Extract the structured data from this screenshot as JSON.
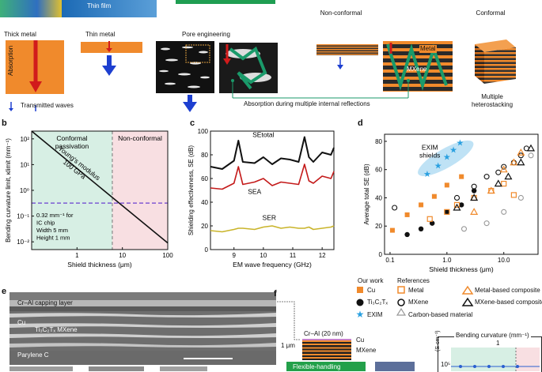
{
  "top": {
    "thin_film_label": "Thin film",
    "non_conformal_label": "Non-conformal",
    "conformal_label": "Conformal"
  },
  "panel_a": {
    "thick_metal": "Thick metal",
    "absorption": "Absorption",
    "thin_metal": "Thin metal",
    "pore_engineering": "Pore engineering",
    "metal": "Metal",
    "mxene": "MXene",
    "transmitted_waves": "Transmitted waves",
    "absorption_multiple": "Absorption during multiple internal reflections",
    "multiple_heterostacking": "Multiple\nheterostacking"
  },
  "panel_b": {
    "letter": "b",
    "ylabel": "Bending curvature limit, κlimit (mm⁻¹)",
    "xlabel": "Shield thickness (μm)",
    "conformal_passivation": "Conformal\npassivation",
    "non_conformal": "Non-conformal",
    "youngs_modulus": "Young's modulus\n100 GPa",
    "note": "0.32 mm⁻¹ for\nIC chip\nWidth 5 mm\nHeight 1 mm",
    "y_ticks": [
      "10²",
      "10¹",
      "10⁰",
      "10⁻¹",
      "10⁻²"
    ],
    "x_ticks": [
      "1",
      "10",
      "100"
    ]
  },
  "panel_c": {
    "letter": "c",
    "ylabel": "Shielding effectiveness, SE (dB)",
    "xlabel": "EM wave frequency (GHz)",
    "se_total": "SEtotal",
    "se_a": "SEA",
    "se_r": "SER",
    "y_ticks": [
      "100",
      "80",
      "60",
      "40",
      "20",
      "0"
    ],
    "x_ticks": [
      "9",
      "10",
      "11",
      "12"
    ]
  },
  "panel_d": {
    "letter": "d",
    "ylabel": "Average total SE (dB)",
    "xlabel": "Shield thickness (μm)",
    "exim_shields": "EXIM\nshields",
    "y_ticks": [
      "80",
      "60",
      "40",
      "20",
      "0"
    ],
    "x_ticks": [
      "0.1",
      "1.0",
      "10.0"
    ]
  },
  "legend": {
    "our_work": "Our work",
    "cu": "Cu",
    "ti3c2tx": "Ti₃C₂Tₓ",
    "exim": "EXIM",
    "references": "References",
    "metal": "Metal",
    "mxene": "MXene",
    "carbon": "Carbon-based material",
    "metal_composite": "Metal-based composite",
    "mxene_composite": "MXene-based composite"
  },
  "panel_e": {
    "letter": "e",
    "capping": "Cr–Al capping layer",
    "cu": "Cu",
    "mxene": "Ti₃C₂Tₓ MXene",
    "parylene": "Parylene C"
  },
  "panel_f": {
    "letter": "f",
    "cr_al": "Cr–Al (20 nm)",
    "cu": "Cu",
    "mxene": "MXene",
    "scale": "1 μm",
    "flex": "Flexible-handling",
    "bending_curvature": "Bending curvature (mm⁻¹)",
    "one": "1",
    "s_cm": "(S cm⁻¹)",
    "ten5": "10⁵"
  },
  "chart_data": [
    {
      "type": "line",
      "panel": "b",
      "title": "",
      "xlabel": "Shield thickness (μm)",
      "ylabel": "Bending curvature limit, κlimit (mm⁻¹)",
      "xscale": "log",
      "yscale": "log",
      "xlim": [
        0.1,
        100
      ],
      "ylim": [
        0.005,
        200
      ],
      "series": [
        {
          "name": "Young's modulus 100 GPa",
          "x": [
            0.1,
            100
          ],
          "y": [
            200,
            0.009
          ]
        },
        {
          "name": "IC chip limit",
          "x": [
            0.1,
            100
          ],
          "y": [
            0.32,
            0.32
          ]
        }
      ],
      "regions": [
        {
          "name": "Conformal passivation",
          "x": [
            0.1,
            6
          ]
        },
        {
          "name": "Non-conformal",
          "x": [
            6,
            100
          ]
        }
      ]
    },
    {
      "type": "line",
      "panel": "c",
      "xlabel": "EM wave frequency (GHz)",
      "ylabel": "Shielding effectiveness, SE (dB)",
      "xlim": [
        8.2,
        12.4
      ],
      "ylim": [
        0,
        100
      ],
      "x": [
        8.2,
        8.6,
        9.0,
        9.15,
        9.3,
        9.7,
        10.0,
        10.3,
        10.6,
        10.9,
        11.2,
        11.4,
        11.55,
        11.7,
        12.0,
        12.3,
        12.4
      ],
      "series": [
        {
          "name": "SEtotal",
          "values": [
            70,
            68,
            75,
            92,
            74,
            73,
            78,
            72,
            77,
            76,
            74,
            95,
            78,
            74,
            82,
            80,
            86
          ]
        },
        {
          "name": "SEA",
          "values": [
            52,
            51,
            56,
            70,
            55,
            57,
            60,
            54,
            57,
            56,
            55,
            72,
            58,
            56,
            62,
            60,
            66
          ]
        },
        {
          "name": "SER",
          "values": [
            16,
            15,
            17,
            18,
            18,
            17,
            19,
            20,
            18,
            19,
            18,
            18,
            19,
            17,
            18,
            19,
            20
          ]
        }
      ]
    },
    {
      "type": "scatter",
      "panel": "d",
      "xlabel": "Shield thickness (μm)",
      "ylabel": "Average total SE (dB)",
      "xscale": "log",
      "xlim": [
        0.08,
        40
      ],
      "ylim": [
        0,
        85
      ],
      "series": [
        {
          "name": "EXIM",
          "x": [
            0.45,
            0.7,
            1.0,
            1.3,
            1.7
          ],
          "y": [
            57,
            63,
            69,
            74,
            79
          ]
        },
        {
          "name": "Cu",
          "x": [
            0.11,
            0.2,
            0.35,
            0.6,
            1.0,
            1.8
          ],
          "y": [
            17,
            28,
            35,
            41,
            49,
            55
          ]
        },
        {
          "name": "Ti3C2Tx",
          "x": [
            0.2,
            0.35,
            0.55,
            1.0,
            1.8,
            3.0
          ],
          "y": [
            14,
            18,
            22,
            30,
            35,
            45
          ]
        },
        {
          "name": "Metal",
          "x": [
            0.5,
            1.0,
            1.5,
            3.0,
            6.0,
            10.0,
            15.0
          ],
          "y": [
            25,
            30,
            35,
            40,
            45,
            50,
            42
          ]
        },
        {
          "name": "MXene",
          "x": [
            0.12,
            1.5,
            3.0,
            5.0,
            8.0,
            10.0,
            15.0,
            20.0,
            25.0
          ],
          "y": [
            33,
            40,
            48,
            55,
            58,
            62,
            65,
            70,
            75
          ]
        },
        {
          "name": "Carbon-based material",
          "x": [
            2.0,
            5.0,
            10.0,
            20.0,
            30.0
          ],
          "y": [
            18,
            22,
            30,
            40,
            70
          ]
        },
        {
          "name": "Metal-based composite",
          "x": [
            3.0,
            6.0,
            10.0,
            15.0,
            20.0
          ],
          "y": [
            30,
            45,
            60,
            65,
            72
          ]
        },
        {
          "name": "MXene-based composite",
          "x": [
            1.5,
            3.0,
            8.0,
            12.0,
            20.0,
            30.0
          ],
          "y": [
            33,
            40,
            50,
            55,
            65,
            75
          ]
        }
      ]
    }
  ]
}
